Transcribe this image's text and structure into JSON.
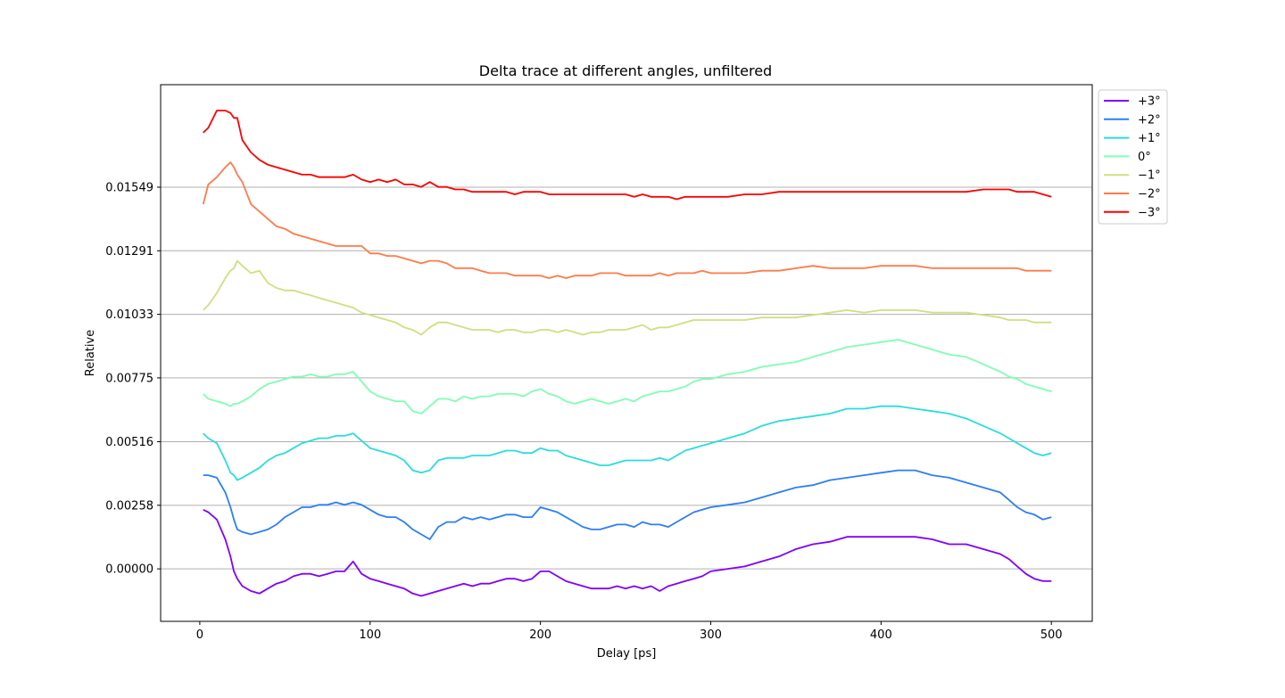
{
  "chart_data": {
    "type": "line",
    "title": "Delta trace at different angles, unfiltered",
    "xlabel": "Delay [ps]",
    "ylabel": "Relative",
    "xlim": [
      -23,
      524
    ],
    "ylim": [
      -0.00213,
      0.01965
    ],
    "xticks": [
      0,
      100,
      200,
      300,
      400,
      500
    ],
    "xtick_labels": [
      "0",
      "100",
      "200",
      "300",
      "400",
      "500"
    ],
    "yticks": [
      0.0,
      0.00258,
      0.00516,
      0.00775,
      0.01033,
      0.01291,
      0.01549
    ],
    "ytick_labels": [
      "0.00000",
      "0.00258",
      "0.00516",
      "0.00775",
      "0.01033",
      "0.01291",
      "0.01549"
    ],
    "grid": "horizontal",
    "legend_position": "outside-top-right",
    "x": [
      2,
      5,
      10,
      15,
      18,
      20,
      22,
      25,
      30,
      35,
      40,
      45,
      50,
      55,
      60,
      65,
      70,
      75,
      80,
      85,
      90,
      95,
      100,
      105,
      110,
      115,
      120,
      125,
      130,
      135,
      140,
      145,
      150,
      155,
      160,
      165,
      170,
      175,
      180,
      185,
      190,
      195,
      200,
      205,
      210,
      215,
      220,
      225,
      230,
      235,
      240,
      245,
      250,
      255,
      260,
      265,
      270,
      275,
      280,
      285,
      290,
      295,
      300,
      310,
      320,
      330,
      340,
      350,
      360,
      370,
      380,
      390,
      400,
      410,
      420,
      430,
      440,
      450,
      460,
      470,
      475,
      480,
      485,
      490,
      495,
      500
    ],
    "series": [
      {
        "name": "+3°",
        "color": "#8000ff",
        "values": [
          0.0024,
          0.0023,
          0.002,
          0.0012,
          0.0005,
          -0.0001,
          -0.0004,
          -0.0007,
          -0.0009,
          -0.001,
          -0.0008,
          -0.0006,
          -0.0005,
          -0.0003,
          -0.0002,
          -0.0002,
          -0.0003,
          -0.0002,
          -0.0001,
          -0.0001,
          0.0003,
          -0.0002,
          -0.0004,
          -0.0005,
          -0.0006,
          -0.0007,
          -0.0008,
          -0.001,
          -0.0011,
          -0.001,
          -0.0009,
          -0.0008,
          -0.0007,
          -0.0006,
          -0.0007,
          -0.0006,
          -0.0006,
          -0.0005,
          -0.0004,
          -0.0004,
          -0.0005,
          -0.0004,
          -0.0001,
          -0.0001,
          -0.0003,
          -0.0005,
          -0.0006,
          -0.0007,
          -0.0008,
          -0.0008,
          -0.0008,
          -0.0007,
          -0.0008,
          -0.0007,
          -0.0008,
          -0.0007,
          -0.0009,
          -0.0007,
          -0.0006,
          -0.0005,
          -0.0004,
          -0.0003,
          -0.0001,
          0.0,
          0.0001,
          0.0003,
          0.0005,
          0.0008,
          0.001,
          0.0011,
          0.0013,
          0.0013,
          0.0013,
          0.0013,
          0.0013,
          0.0012,
          0.001,
          0.001,
          0.0008,
          0.0006,
          0.0004,
          0.0001,
          -0.0002,
          -0.0004,
          -0.0005,
          -0.0005
        ]
      },
      {
        "name": "+2°",
        "color": "#2c7ef7",
        "values": [
          0.0038,
          0.0038,
          0.0037,
          0.0031,
          0.0025,
          0.002,
          0.0016,
          0.0015,
          0.0014,
          0.0015,
          0.0016,
          0.0018,
          0.0021,
          0.0023,
          0.0025,
          0.0025,
          0.0026,
          0.0026,
          0.0027,
          0.0026,
          0.0027,
          0.0026,
          0.0024,
          0.0022,
          0.0021,
          0.0021,
          0.0019,
          0.0016,
          0.0014,
          0.0012,
          0.0017,
          0.0019,
          0.0019,
          0.0021,
          0.002,
          0.0021,
          0.002,
          0.0021,
          0.0022,
          0.0022,
          0.0021,
          0.0021,
          0.0025,
          0.0024,
          0.0023,
          0.0021,
          0.0019,
          0.0017,
          0.0016,
          0.0016,
          0.0017,
          0.0018,
          0.0018,
          0.0017,
          0.0019,
          0.0018,
          0.0018,
          0.0017,
          0.0019,
          0.0021,
          0.0023,
          0.0024,
          0.0025,
          0.0026,
          0.0027,
          0.0029,
          0.0031,
          0.0033,
          0.0034,
          0.0036,
          0.0037,
          0.0038,
          0.0039,
          0.004,
          0.004,
          0.0038,
          0.0037,
          0.0035,
          0.0033,
          0.0031,
          0.0028,
          0.0025,
          0.0023,
          0.0022,
          0.002,
          0.0021
        ]
      },
      {
        "name": "+1°",
        "color": "#2adddd",
        "values": [
          0.0055,
          0.0053,
          0.0051,
          0.0044,
          0.0039,
          0.0038,
          0.0036,
          0.0037,
          0.0039,
          0.0041,
          0.0044,
          0.0046,
          0.0047,
          0.0049,
          0.0051,
          0.0052,
          0.0053,
          0.0053,
          0.0054,
          0.0054,
          0.0055,
          0.0052,
          0.0049,
          0.0048,
          0.0047,
          0.0046,
          0.0044,
          0.004,
          0.0039,
          0.004,
          0.0044,
          0.0045,
          0.0045,
          0.0045,
          0.0046,
          0.0046,
          0.0046,
          0.0047,
          0.0048,
          0.0048,
          0.0047,
          0.0047,
          0.0049,
          0.0048,
          0.0048,
          0.0046,
          0.0045,
          0.0044,
          0.0043,
          0.0042,
          0.0042,
          0.0043,
          0.0044,
          0.0044,
          0.0044,
          0.0044,
          0.0045,
          0.0044,
          0.0046,
          0.0048,
          0.0049,
          0.005,
          0.0051,
          0.0053,
          0.0055,
          0.0058,
          0.006,
          0.0061,
          0.0062,
          0.0063,
          0.0065,
          0.0065,
          0.0066,
          0.0066,
          0.0065,
          0.0064,
          0.0063,
          0.0061,
          0.0058,
          0.0055,
          0.0053,
          0.0051,
          0.0049,
          0.0047,
          0.0046,
          0.0047
        ]
      },
      {
        "name": "0°",
        "color": "#80ffb4",
        "values": [
          0.0071,
          0.0069,
          0.0068,
          0.0067,
          0.0066,
          0.0067,
          0.0067,
          0.0068,
          0.007,
          0.0073,
          0.0075,
          0.0076,
          0.0077,
          0.0078,
          0.0078,
          0.0079,
          0.0078,
          0.0078,
          0.0079,
          0.0079,
          0.008,
          0.0076,
          0.0072,
          0.007,
          0.0069,
          0.0068,
          0.0068,
          0.0064,
          0.0063,
          0.0066,
          0.0069,
          0.0069,
          0.0068,
          0.007,
          0.0069,
          0.007,
          0.007,
          0.0071,
          0.0071,
          0.0071,
          0.007,
          0.0072,
          0.0073,
          0.0071,
          0.007,
          0.0068,
          0.0067,
          0.0068,
          0.0069,
          0.0068,
          0.0067,
          0.0068,
          0.0069,
          0.0068,
          0.007,
          0.0071,
          0.0072,
          0.0072,
          0.0073,
          0.0074,
          0.0076,
          0.0077,
          0.0077,
          0.0079,
          0.008,
          0.0082,
          0.0083,
          0.0084,
          0.0086,
          0.0088,
          0.009,
          0.0091,
          0.0092,
          0.0093,
          0.0091,
          0.0089,
          0.0087,
          0.0086,
          0.0083,
          0.008,
          0.0078,
          0.0077,
          0.0075,
          0.0074,
          0.0073,
          0.0072
        ]
      },
      {
        "name": "−1°",
        "color": "#d4dd80",
        "values": [
          0.0105,
          0.0107,
          0.0112,
          0.0118,
          0.0121,
          0.0122,
          0.0125,
          0.0123,
          0.012,
          0.0121,
          0.0116,
          0.0114,
          0.0113,
          0.0113,
          0.0112,
          0.0111,
          0.011,
          0.0109,
          0.0108,
          0.0107,
          0.0106,
          0.0104,
          0.0103,
          0.0102,
          0.0101,
          0.01,
          0.0098,
          0.0097,
          0.0095,
          0.0098,
          0.01,
          0.01,
          0.0099,
          0.0098,
          0.0097,
          0.0097,
          0.0097,
          0.0096,
          0.0097,
          0.0097,
          0.0096,
          0.0096,
          0.0097,
          0.0097,
          0.0096,
          0.0097,
          0.0096,
          0.0095,
          0.0096,
          0.0096,
          0.0097,
          0.0097,
          0.0097,
          0.0098,
          0.0099,
          0.0097,
          0.0098,
          0.0098,
          0.0099,
          0.01,
          0.0101,
          0.0101,
          0.0101,
          0.0101,
          0.0101,
          0.0102,
          0.0102,
          0.0102,
          0.0103,
          0.0104,
          0.0105,
          0.0104,
          0.0105,
          0.0105,
          0.0105,
          0.0104,
          0.0104,
          0.0104,
          0.0103,
          0.0102,
          0.0101,
          0.0101,
          0.0101,
          0.01,
          0.01,
          0.01
        ]
      },
      {
        "name": "−2°",
        "color": "#ff7b4a",
        "values": [
          0.0148,
          0.0156,
          0.0159,
          0.0163,
          0.0165,
          0.0163,
          0.016,
          0.0157,
          0.0148,
          0.0145,
          0.0142,
          0.0139,
          0.0138,
          0.0136,
          0.0135,
          0.0134,
          0.0133,
          0.0132,
          0.0131,
          0.0131,
          0.0131,
          0.0131,
          0.0128,
          0.0128,
          0.0127,
          0.0127,
          0.0126,
          0.0125,
          0.0124,
          0.0125,
          0.0125,
          0.0124,
          0.0122,
          0.0122,
          0.0122,
          0.0121,
          0.012,
          0.012,
          0.012,
          0.0119,
          0.0119,
          0.0119,
          0.0119,
          0.0118,
          0.0119,
          0.0118,
          0.0119,
          0.0119,
          0.0119,
          0.012,
          0.012,
          0.012,
          0.0119,
          0.0119,
          0.0119,
          0.0119,
          0.012,
          0.0119,
          0.012,
          0.012,
          0.012,
          0.0121,
          0.012,
          0.012,
          0.012,
          0.0121,
          0.0121,
          0.0122,
          0.0123,
          0.0122,
          0.0122,
          0.0122,
          0.0123,
          0.0123,
          0.0123,
          0.0122,
          0.0122,
          0.0122,
          0.0122,
          0.0122,
          0.0122,
          0.0122,
          0.0121,
          0.0121,
          0.0121,
          0.0121
        ]
      },
      {
        "name": "−3°",
        "color": "#ff0000",
        "values": [
          0.0177,
          0.0179,
          0.0186,
          0.0186,
          0.0185,
          0.0183,
          0.0183,
          0.0174,
          0.0169,
          0.0166,
          0.0164,
          0.0163,
          0.0162,
          0.0161,
          0.016,
          0.016,
          0.0159,
          0.0159,
          0.0159,
          0.0159,
          0.016,
          0.0158,
          0.0157,
          0.0158,
          0.0157,
          0.0158,
          0.0156,
          0.0156,
          0.0155,
          0.0157,
          0.0155,
          0.0155,
          0.0154,
          0.0154,
          0.0153,
          0.0153,
          0.0153,
          0.0153,
          0.0153,
          0.0152,
          0.0153,
          0.0153,
          0.0153,
          0.0152,
          0.0152,
          0.0152,
          0.0152,
          0.0152,
          0.0152,
          0.0152,
          0.0152,
          0.0152,
          0.0152,
          0.0151,
          0.0152,
          0.0151,
          0.0151,
          0.0151,
          0.015,
          0.0151,
          0.0151,
          0.0151,
          0.0151,
          0.0151,
          0.0152,
          0.0152,
          0.0153,
          0.0153,
          0.0153,
          0.0153,
          0.0153,
          0.0153,
          0.0153,
          0.0153,
          0.0153,
          0.0153,
          0.0153,
          0.0153,
          0.0154,
          0.0154,
          0.0154,
          0.0153,
          0.0153,
          0.0153,
          0.0152,
          0.0151
        ]
      }
    ]
  }
}
